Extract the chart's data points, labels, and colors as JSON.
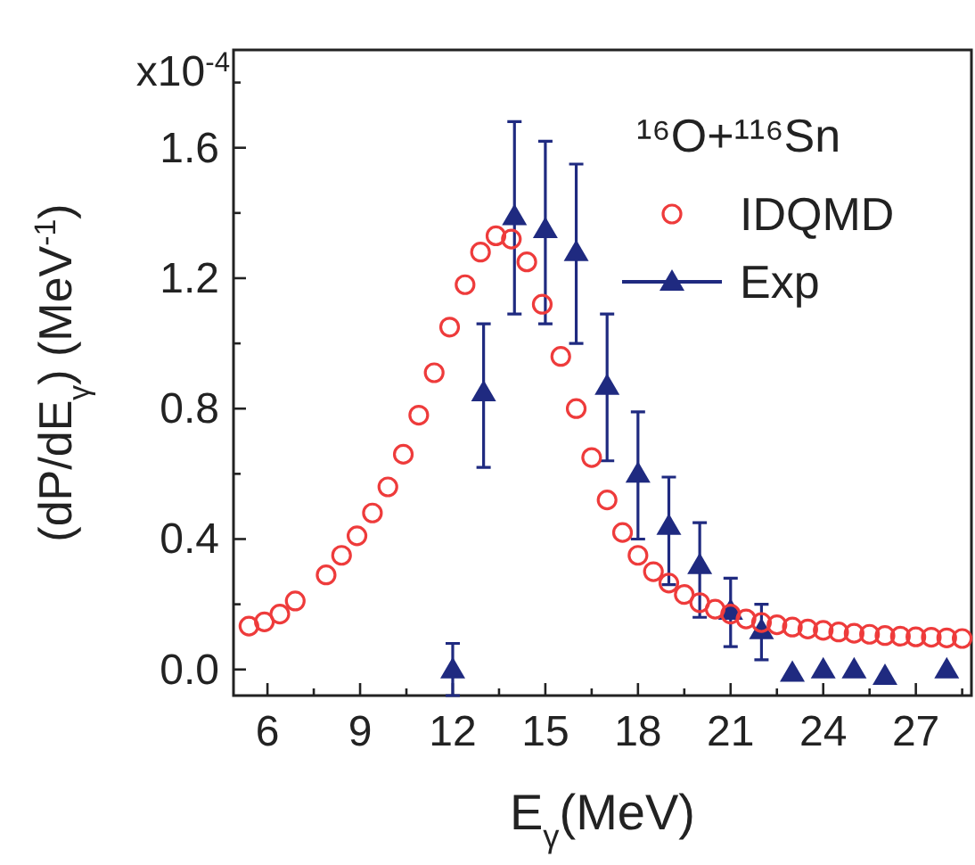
{
  "chart_data": {
    "type": "scatter",
    "xlabel": "E$_{γ}$(MeV)",
    "ylabel": "(dP/dE$_{γ}$)  (MeV$^{-1}$)",
    "legend_title": "¹⁶O+¹¹⁶Sn",
    "annotations": [
      "x10$^{-4}$"
    ],
    "xlim": [
      4.9,
      28.8
    ],
    "ylim": [
      -0.08,
      1.9
    ],
    "xticks": [
      {
        "value": 6,
        "label": "6"
      },
      {
        "value": 7.5,
        "label": null
      },
      {
        "value": 9,
        "label": "9"
      },
      {
        "value": 10.5,
        "label": null
      },
      {
        "value": 12,
        "label": "12"
      },
      {
        "value": 13.5,
        "label": null
      },
      {
        "value": 15,
        "label": "15"
      },
      {
        "value": 16.5,
        "label": null
      },
      {
        "value": 18,
        "label": "18"
      },
      {
        "value": 19.5,
        "label": null
      },
      {
        "value": 21,
        "label": "21"
      },
      {
        "value": 22.5,
        "label": null
      },
      {
        "value": 24,
        "label": "24"
      },
      {
        "value": 25.5,
        "label": null
      },
      {
        "value": 27,
        "label": "27"
      },
      {
        "value": 28.5,
        "label": null
      }
    ],
    "yticks": [
      {
        "value": 0,
        "label": "0.0"
      },
      {
        "value": 0.2,
        "label": null
      },
      {
        "value": 0.4,
        "label": "0.4"
      },
      {
        "value": 0.6,
        "label": null
      },
      {
        "value": 0.8,
        "label": "0.8"
      },
      {
        "value": 1,
        "label": null
      },
      {
        "value": 1.2,
        "label": "1.2"
      },
      {
        "value": 1.4,
        "label": null
      },
      {
        "value": 1.6,
        "label": "1.6"
      },
      {
        "value": 1.8,
        "label": null
      }
    ],
    "grid": false,
    "legend": "top right",
    "series": [
      {
        "name": "IDQMD",
        "color": "#ee3b3b",
        "marker": "circle",
        "x": [
          5.4,
          5.9,
          6.4,
          6.9,
          7.9,
          8.4,
          8.9,
          9.4,
          9.9,
          10.4,
          10.9,
          11.4,
          11.9,
          12.4,
          12.9,
          13.4,
          13.9,
          14.4,
          14.9,
          15.5,
          16,
          16.5,
          17,
          17.5,
          18,
          18.5,
          19,
          19.5,
          20,
          20.5,
          21,
          21.5,
          22,
          22.5,
          23,
          23.5,
          24,
          24.5,
          25,
          25.5,
          26,
          26.5,
          27,
          27.5,
          28,
          28.5
        ],
        "values": [
          0.133,
          0.146,
          0.17,
          0.21,
          0.29,
          0.35,
          0.41,
          0.48,
          0.56,
          0.66,
          0.78,
          0.91,
          1.05,
          1.18,
          1.28,
          1.33,
          1.32,
          1.25,
          1.12,
          0.96,
          0.8,
          0.65,
          0.52,
          0.42,
          0.35,
          0.3,
          0.265,
          0.23,
          0.205,
          0.185,
          0.17,
          0.155,
          0.144,
          0.137,
          0.13,
          0.124,
          0.12,
          0.115,
          0.111,
          0.108,
          0.104,
          0.102,
          0.1,
          0.099,
          0.097,
          0.095
        ]
      },
      {
        "name": "Exp",
        "color": "#1f2a80",
        "marker": "triangle",
        "x": [
          12,
          13,
          14,
          15,
          16,
          17,
          18,
          19,
          20,
          21,
          22,
          23,
          24,
          25,
          26,
          28
        ],
        "values": [
          0,
          0.85,
          1.39,
          1.35,
          1.28,
          0.87,
          0.6,
          0.44,
          0.32,
          0.18,
          0.12,
          -0.01,
          0,
          0,
          -0.02,
          0
        ],
        "errors": [
          [
            -0.08,
            0.08
          ],
          [
            0.62,
            1.06
          ],
          [
            1.09,
            1.68
          ],
          [
            1.06,
            1.62
          ],
          [
            1,
            1.55
          ],
          [
            0.64,
            1.09
          ],
          [
            0.4,
            0.79
          ],
          [
            0.26,
            0.59
          ],
          [
            0.16,
            0.45
          ],
          [
            0.07,
            0.28
          ],
          [
            0.03,
            0.2
          ],
          null,
          null,
          null,
          null,
          null
        ]
      }
    ]
  }
}
